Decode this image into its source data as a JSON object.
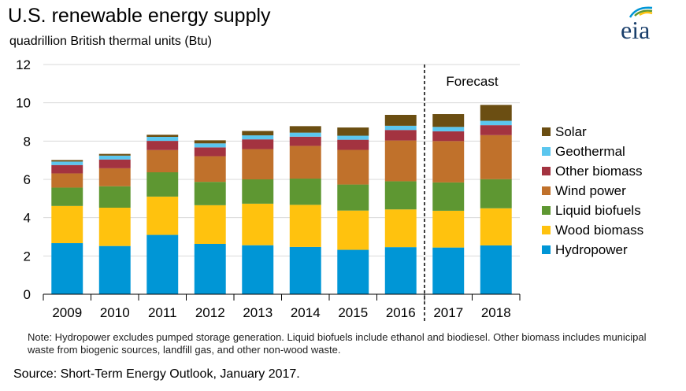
{
  "title": "U.S. renewable energy supply",
  "subtitle": "quadrillion  British thermal units  (Btu)",
  "note": "Note: Hydropower excludes pumped storage generation.  Liquid biofuels include ethanol and biodiesel.  Other biomass includes municipal waste from biogenic sources, landfill gas, and other non-wood waste.",
  "source": "Source: Short-Term Energy Outlook, January 2017.",
  "logo": {
    "text": "eia",
    "icon": "eia-logo-icon"
  },
  "chart_data": {
    "type": "bar",
    "stacked": true,
    "title": "U.S. renewable energy supply",
    "subtitle": "quadrillion  British thermal units  (Btu)",
    "categories": [
      "2009",
      "2010",
      "2011",
      "2012",
      "2013",
      "2014",
      "2015",
      "2016",
      "2017",
      "2018"
    ],
    "ylim": [
      0,
      12
    ],
    "yticks": [
      0,
      2,
      4,
      6,
      8,
      10,
      12
    ],
    "grid": true,
    "legend_position": "right",
    "forecast_label": "Forecast",
    "forecast_start_category": "2017",
    "series": [
      {
        "name": "Hydropower",
        "color": "#0096d6",
        "values": [
          2.67,
          2.52,
          3.1,
          2.63,
          2.56,
          2.47,
          2.32,
          2.46,
          2.44,
          2.55
        ]
      },
      {
        "name": "Wood biomass",
        "color": "#ffc20e",
        "values": [
          1.94,
          2.0,
          2.0,
          2.02,
          2.17,
          2.2,
          2.05,
          1.97,
          1.92,
          1.94
        ]
      },
      {
        "name": "Liquid biofuels",
        "color": "#5e9732",
        "values": [
          0.96,
          1.12,
          1.27,
          1.22,
          1.27,
          1.37,
          1.36,
          1.47,
          1.48,
          1.52
        ]
      },
      {
        "name": "Wind power",
        "color": "#c0712b",
        "values": [
          0.74,
          0.94,
          1.16,
          1.34,
          1.58,
          1.71,
          1.81,
          2.13,
          2.16,
          2.3
        ]
      },
      {
        "name": "Other biomass",
        "color": "#a33340",
        "values": [
          0.44,
          0.46,
          0.48,
          0.46,
          0.51,
          0.48,
          0.53,
          0.55,
          0.51,
          0.52
        ]
      },
      {
        "name": "Geothermal",
        "color": "#5bc6ee",
        "values": [
          0.18,
          0.2,
          0.21,
          0.21,
          0.21,
          0.21,
          0.21,
          0.22,
          0.23,
          0.23
        ]
      },
      {
        "name": "Solar",
        "color": "#6b4e12",
        "values": [
          0.08,
          0.09,
          0.11,
          0.16,
          0.23,
          0.34,
          0.43,
          0.57,
          0.67,
          0.83
        ]
      }
    ]
  }
}
